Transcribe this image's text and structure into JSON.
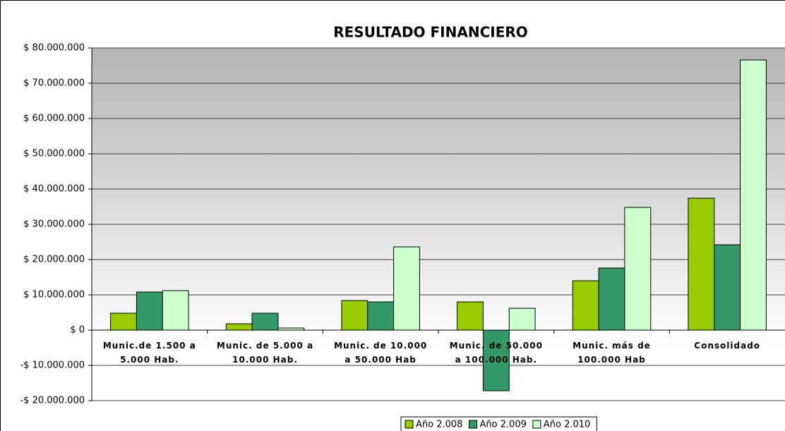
{
  "chart_data": {
    "type": "bar",
    "title": "RESULTADO FINANCIERO",
    "categories": [
      "Munic.de 1.500 a\n5.000 Hab.",
      "Munic. de 5.000 a\n10.000 Hab.",
      "Munic. de 10.000\na 50.000 Hab",
      "Munic. de 50.000\na 100.000 Hab.",
      "Munic.  más de\n100.000 Hab",
      "Consolidado"
    ],
    "series": [
      {
        "name": "Año 2.008",
        "color": "#99cc00",
        "values": [
          4800000,
          1800000,
          8400000,
          8000000,
          14000000,
          37400000
        ]
      },
      {
        "name": "Año 2.009",
        "color": "#339966",
        "values": [
          10800000,
          4800000,
          8000000,
          -17200000,
          17600000,
          24200000
        ]
      },
      {
        "name": "Año 2.010",
        "color": "#ccffcc",
        "values": [
          11200000,
          600000,
          23600000,
          6200000,
          34800000,
          76600000
        ]
      }
    ],
    "ylim": [
      -20000000,
      80000000
    ],
    "yticks": [
      {
        "value": -20000000,
        "label": "-$ 20.000.000"
      },
      {
        "value": -10000000,
        "label": "-$ 10.000.000"
      },
      {
        "value": 0,
        "label": "$ 0"
      },
      {
        "value": 10000000,
        "label": "$ 10.000.000"
      },
      {
        "value": 20000000,
        "label": "$ 20.000.000"
      },
      {
        "value": 30000000,
        "label": "$ 30.000.000"
      },
      {
        "value": 40000000,
        "label": "$ 40.000.000"
      },
      {
        "value": 50000000,
        "label": "$ 50.000.000"
      },
      {
        "value": 60000000,
        "label": "$ 60.000.000"
      },
      {
        "value": 70000000,
        "label": "$ 70.000.000"
      },
      {
        "value": 80000000,
        "label": "$ 80.000.000"
      }
    ],
    "grid": true,
    "legend": "bottom"
  }
}
